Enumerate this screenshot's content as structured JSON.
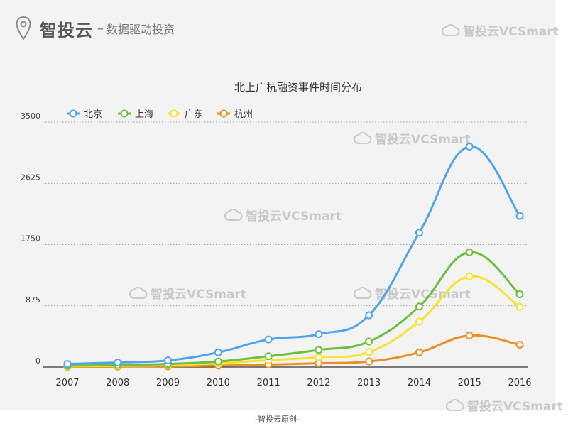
{
  "header": {
    "brand_name": "智投云",
    "separator": "–",
    "slogan": "数据驱动投资",
    "watermark": "智投云VCSmart"
  },
  "footer": {
    "text": "-智投云原创-"
  },
  "colors": {
    "beijing": "#4ea5ec",
    "shanghai": "#6dbf3e",
    "guangdong": "#f5e32e",
    "hangzhou": "#ec8f22",
    "background": "#f3f3f3"
  },
  "chart_data": {
    "type": "line",
    "title": "北上广杭融资事件时间分布",
    "xlabel": "",
    "ylabel": "",
    "ylim": [
      0,
      3500
    ],
    "yticks": [
      0,
      875,
      1750,
      2625,
      3500
    ],
    "legend_position": "top-left",
    "grid": "horizontal-dotted",
    "x": [
      "2007",
      "2008",
      "2009",
      "2010",
      "2011",
      "2012",
      "2013",
      "2014",
      "2015",
      "2016"
    ],
    "series": [
      {
        "name": "北京",
        "color": "#4ea5ec",
        "values": [
          45,
          65,
          95,
          210,
          395,
          470,
          740,
          1920,
          3150,
          2160
        ]
      },
      {
        "name": "上海",
        "color": "#6dbf3e",
        "values": [
          20,
          30,
          45,
          80,
          155,
          245,
          365,
          865,
          1640,
          1040
        ]
      },
      {
        "name": "广东",
        "color": "#f5e32e",
        "values": [
          12,
          18,
          28,
          55,
          100,
          140,
          215,
          650,
          1295,
          860
        ]
      },
      {
        "name": "杭州",
        "color": "#ec8f22",
        "values": [
          5,
          8,
          12,
          20,
          35,
          55,
          80,
          210,
          450,
          320
        ]
      }
    ]
  }
}
